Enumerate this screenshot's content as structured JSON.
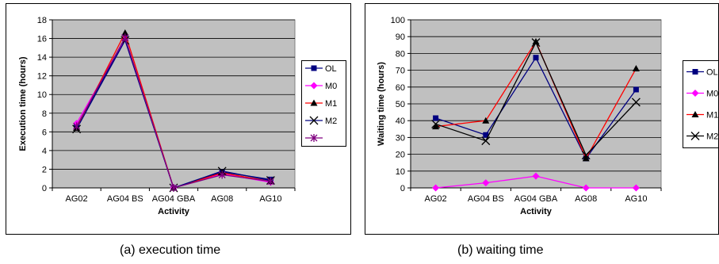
{
  "charts": [
    {
      "caption": "(a) execution time",
      "chart_data": {
        "type": "line",
        "categories": [
          "AG02",
          "AG04 BS",
          "AG04 GBA",
          "AG08",
          "AG10"
        ],
        "xlabel": "Activity",
        "ylabel": "Execution time (hours)",
        "ylim": [
          0,
          18
        ],
        "yticks": [
          0,
          2,
          4,
          6,
          8,
          10,
          12,
          14,
          16,
          18
        ],
        "grid": true,
        "legend_position": "right",
        "series": [
          {
            "name": "OL",
            "values": [
              6.5,
              16.0,
              0,
              1.7,
              0.9
            ],
            "color": "#000080",
            "marker": "square"
          },
          {
            "name": "M0",
            "values": [
              6.9,
              16.0,
              0,
              1.5,
              0.6
            ],
            "color": "#FF00FF",
            "marker": "diamond"
          },
          {
            "name": "M1",
            "values": [
              6.4,
              16.6,
              0,
              1.6,
              0.7
            ],
            "color": "#FF0000",
            "marker": "triangle"
          },
          {
            "name": "M2",
            "values": [
              6.3,
              15.8,
              0,
              1.8,
              0.8
            ],
            "color": "#000080",
            "marker": "x"
          },
          {
            "name": "",
            "values": [
              6.6,
              16.1,
              0,
              1.4,
              0.7
            ],
            "color": "#800080",
            "marker": "star"
          }
        ]
      }
    },
    {
      "caption": "(b) waiting time",
      "chart_data": {
        "type": "line",
        "categories": [
          "AG02",
          "AG04 BS",
          "AG04 GBA",
          "AG08",
          "AG10"
        ],
        "xlabel": "Activity",
        "ylabel": "Waiting time (hours)",
        "ylim": [
          0,
          100
        ],
        "yticks": [
          0,
          10,
          20,
          30,
          40,
          50,
          60,
          70,
          80,
          90,
          100
        ],
        "grid": true,
        "legend_position": "right",
        "series": [
          {
            "name": "OL",
            "values": [
              41.5,
              31.5,
              77.5,
              17.5,
              58.5
            ],
            "color": "#000080",
            "marker": "square"
          },
          {
            "name": "M0",
            "values": [
              0,
              3,
              7,
              0,
              0
            ],
            "color": "#FF00FF",
            "marker": "diamond"
          },
          {
            "name": "M1",
            "values": [
              36.5,
              40,
              87,
              17.5,
              71
            ],
            "color": "#FF0000",
            "marker": "triangle"
          },
          {
            "name": "M2",
            "values": [
              38,
              28,
              86.5,
              19.5,
              51
            ],
            "color": "#000000",
            "marker": "x"
          }
        ]
      }
    }
  ]
}
